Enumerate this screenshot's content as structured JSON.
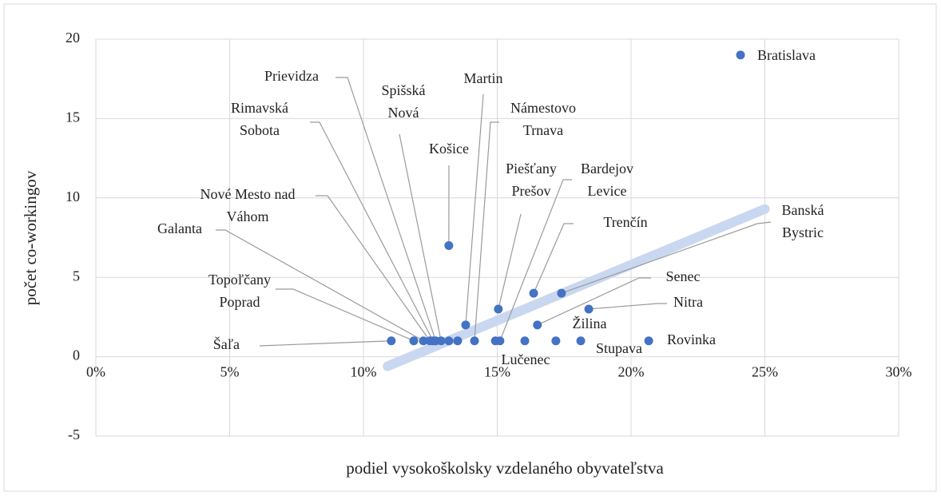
{
  "chart_data": {
    "type": "scatter",
    "x_label": "podiel vysokoškolsky vzdelaného obyvateľstva",
    "y_label": "počet co-workingov",
    "x": [
      11.04,
      11.88,
      12.24,
      12.48,
      12.6,
      12.7,
      12.9,
      13.19,
      13.82,
      14.15,
      13.19,
      13.52,
      15.04,
      15.1,
      14.93,
      16.36,
      17.4,
      16.5,
      18.42,
      16.03,
      17.19,
      18.12,
      20.66,
      24.09
    ],
    "values": [
      1,
      1,
      1,
      1,
      1,
      1,
      1,
      7,
      2,
      1,
      1,
      1,
      3,
      1,
      1,
      4,
      4,
      2,
      3,
      1,
      1,
      1,
      1,
      19
    ],
    "labels": [
      [
        "Šaľa"
      ],
      [
        "Topoľčany",
        "Poprad"
      ],
      [
        "Galanta"
      ],
      [
        "Nové Mesto nad",
        "Váhom"
      ],
      [
        "Rimavská",
        "Sobota"
      ],
      [
        "Prievidza"
      ],
      [
        "Spišská",
        "Nová"
      ],
      [
        "Košice"
      ],
      [
        "Martin"
      ],
      [
        "Námestovo",
        "Trnava"
      ],
      null,
      null,
      [
        "Piešťany",
        "Prešov"
      ],
      [
        "Bardejov",
        "Levice"
      ],
      null,
      [
        "Trenčín"
      ],
      [
        "Banská",
        "Bystric"
      ],
      [
        "Senec"
      ],
      [
        "Nitra"
      ],
      [
        "Lučenec"
      ],
      [
        "Žilina"
      ],
      [
        "Stupava"
      ],
      [
        "Rovinka"
      ],
      [
        "Bratislava"
      ]
    ],
    "color": "#4472c4",
    "trendline": {
      "x": [
        10.9,
        25
      ],
      "values": [
        -0.6,
        9.3
      ],
      "color": "#c9d8f0"
    },
    "xlim": [
      0,
      30
    ],
    "xticks": [
      {
        "value": 0,
        "label": "0%"
      },
      {
        "value": 5,
        "label": "5%"
      },
      {
        "value": 10,
        "label": "10%"
      },
      {
        "value": 15,
        "label": "15%"
      },
      {
        "value": 20,
        "label": "20%"
      },
      {
        "value": 25,
        "label": "25%"
      },
      {
        "value": 30,
        "label": "30%"
      }
    ],
    "ylim": [
      -5,
      20
    ],
    "yticks": [
      -5,
      0,
      5,
      10,
      15,
      20
    ],
    "grid": true
  }
}
